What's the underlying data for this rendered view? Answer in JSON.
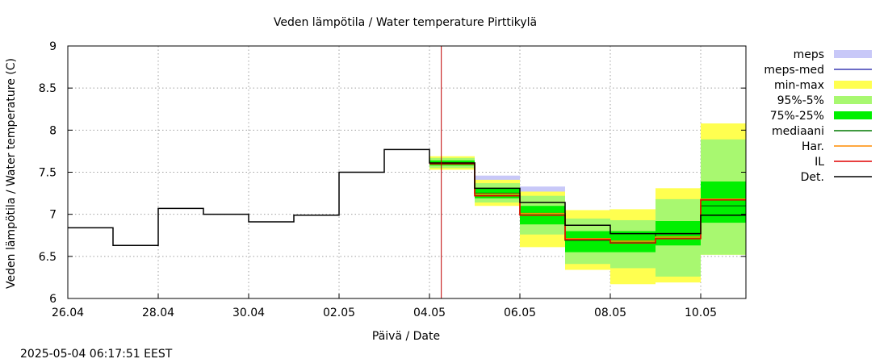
{
  "chart_data": {
    "type": "line",
    "title": "Veden lämpötila / Water temperature Pirttikylä",
    "xlabel": "Päivä / Date",
    "ylabel": "Veden lämpötila / Water temperature (C)",
    "timestamp": "2025-05-04 06:17:51 EEST",
    "ylim": [
      6,
      9
    ],
    "yticks": [
      "6",
      "6.5",
      "7",
      "7.5",
      "8",
      "8.5",
      "9"
    ],
    "xlim": [
      "2025-04-26",
      "2025-05-11"
    ],
    "xticks": [
      "26.04",
      "28.04",
      "30.04",
      "02.05",
      "04.05",
      "06.05",
      "08.05",
      "10.05"
    ],
    "grid": true,
    "legend_position": "right",
    "forecast_marker_date": "2025-05-04 06:17",
    "legend": [
      {
        "label": "meps",
        "kind": "band",
        "color": "#c8c8f8"
      },
      {
        "label": "meps-med",
        "kind": "line",
        "color": "#3c3cb4"
      },
      {
        "label": "min-max",
        "kind": "band",
        "color": "#ffff50"
      },
      {
        "label": "95%-5%",
        "kind": "band",
        "color": "#a8f870"
      },
      {
        "label": "75%-25%",
        "kind": "band",
        "color": "#00f000"
      },
      {
        "label": "mediaani",
        "kind": "line",
        "color": "#007800"
      },
      {
        "label": "Har.",
        "kind": "line",
        "color": "#ff8c00"
      },
      {
        "label": "IL",
        "kind": "line",
        "color": "#e00000"
      },
      {
        "label": "Det.",
        "kind": "line",
        "color": "#000000"
      }
    ],
    "observed": {
      "name": "Det.",
      "steps": [
        {
          "date": "2025-04-26",
          "value": 6.84
        },
        {
          "date": "2025-04-27",
          "value": 6.63
        },
        {
          "date": "2025-04-28",
          "value": 7.07
        },
        {
          "date": "2025-04-29",
          "value": 7.0
        },
        {
          "date": "2025-04-30",
          "value": 6.91
        },
        {
          "date": "2025-05-01",
          "value": 6.99
        },
        {
          "date": "2025-05-02",
          "value": 7.5
        },
        {
          "date": "2025-05-03",
          "value": 7.77
        },
        {
          "date": "2025-05-04",
          "value": 7.61
        }
      ]
    },
    "forecast": [
      {
        "date": "2025-05-04",
        "meps": [
          7.57,
          7.66
        ],
        "minmax": [
          7.53,
          7.69
        ],
        "p95_5": [
          7.55,
          7.67
        ],
        "p75_25": [
          7.58,
          7.64
        ],
        "median": 7.61,
        "har": 7.61,
        "il": 7.6,
        "det": 7.61
      },
      {
        "date": "2025-05-05",
        "meps": [
          7.27,
          7.46
        ],
        "minmax": [
          7.1,
          7.41
        ],
        "p95_5": [
          7.14,
          7.37
        ],
        "p75_25": [
          7.19,
          7.31
        ],
        "median": 7.25,
        "har": 7.24,
        "il": 7.22,
        "det": 7.31
      },
      {
        "date": "2025-05-06",
        "meps": [
          7.06,
          7.33
        ],
        "minmax": [
          6.61,
          7.27
        ],
        "p95_5": [
          6.76,
          7.22
        ],
        "p75_25": [
          6.88,
          7.1
        ],
        "median": 7.01,
        "har": 7.01,
        "il": 6.99,
        "det": 7.14
      },
      {
        "date": "2025-05-07",
        "meps": [
          6.76,
          6.99
        ],
        "minmax": [
          6.34,
          7.05
        ],
        "p95_5": [
          6.41,
          6.95
        ],
        "p75_25": [
          6.55,
          6.8
        ],
        "median": 6.69,
        "har": 6.71,
        "il": 6.7,
        "det": 6.87
      },
      {
        "date": "2025-05-08",
        "meps": [
          6.7,
          6.87
        ],
        "minmax": [
          6.17,
          7.06
        ],
        "p95_5": [
          6.36,
          6.93
        ],
        "p75_25": [
          6.55,
          6.8
        ],
        "median": 6.66,
        "har": 6.68,
        "il": 6.66,
        "det": 6.77
      },
      {
        "date": "2025-05-09",
        "meps": [
          6.72,
          6.85
        ],
        "minmax": [
          6.19,
          7.31
        ],
        "p95_5": [
          6.26,
          7.18
        ],
        "p75_25": [
          6.63,
          6.92
        ],
        "median": 6.77,
        "har": 6.73,
        "il": 6.71,
        "det": 6.77
      },
      {
        "date": "2025-05-10",
        "meps": [
          7.0,
          7.2
        ],
        "minmax": [
          6.52,
          8.08
        ],
        "p95_5": [
          6.52,
          7.89
        ],
        "p75_25": [
          6.9,
          7.39
        ],
        "median": 7.1,
        "har": 7.18,
        "il": 7.17,
        "det": 6.99
      },
      {
        "date": "2025-05-11",
        "meps": [
          7.0,
          7.2
        ],
        "minmax": [
          6.52,
          8.08
        ],
        "p95_5": [
          6.52,
          7.89
        ],
        "p75_25": [
          6.9,
          7.39
        ],
        "median": 7.1,
        "har": 7.18,
        "il": 7.17,
        "det": 6.99
      }
    ]
  }
}
